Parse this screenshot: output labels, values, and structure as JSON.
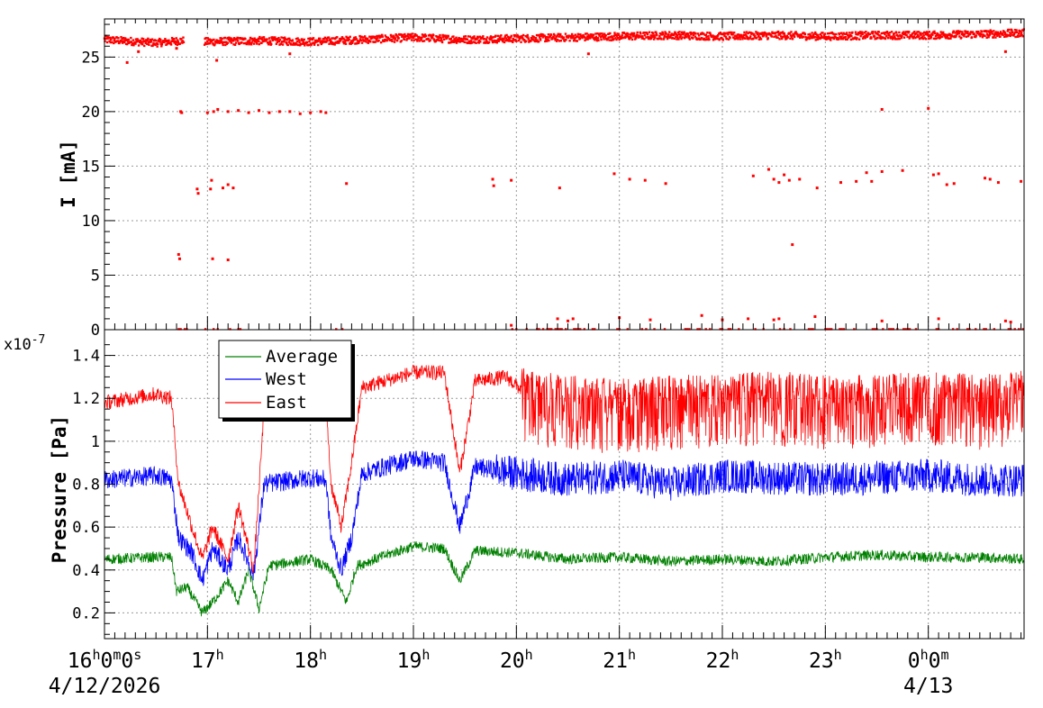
{
  "colors": {
    "current": "#ff0000",
    "average": "#008000",
    "west": "#0000ff",
    "east": "#ff0000",
    "grid": "#9a9a9a"
  },
  "x_axis": {
    "labels": [
      {
        "h": "16",
        "sup1": "h",
        "m": "0",
        "sup2": "m",
        "s": "0",
        "sup3": "s",
        "hour": 16
      },
      {
        "h": "17",
        "sup1": "h",
        "hour": 17
      },
      {
        "h": "18",
        "sup1": "h",
        "hour": 18
      },
      {
        "h": "19",
        "sup1": "h",
        "hour": 19
      },
      {
        "h": "20",
        "sup1": "h",
        "hour": 20
      },
      {
        "h": "21",
        "sup1": "h",
        "hour": 21
      },
      {
        "h": "22",
        "sup1": "h",
        "hour": 22
      },
      {
        "h": "23",
        "sup1": "h",
        "hour": 23
      },
      {
        "h": "0",
        "sup1": "h",
        "m": "0",
        "sup2": "m",
        "hour": 24
      }
    ],
    "dates": [
      {
        "text": "4/12/2026",
        "hour": 16
      },
      {
        "text": "4/13",
        "hour": 24
      }
    ]
  },
  "chart_data": [
    {
      "type": "scatter",
      "ylabel": "I [mA]",
      "x_range_hours": [
        16.0,
        24.93
      ],
      "ylim": [
        0,
        28.5
      ],
      "yticks": [
        0,
        5,
        10,
        15,
        20,
        25
      ],
      "grid": true,
      "series": [
        {
          "color": "#ff0000",
          "baseline_points": [
            [
              16.0,
              26.6
            ],
            [
              16.5,
              26.3
            ],
            [
              16.75,
              26.5
            ],
            [
              17.0,
              26.4
            ],
            [
              17.5,
              26.5
            ],
            [
              18.0,
              26.4
            ],
            [
              18.5,
              26.6
            ],
            [
              19.0,
              26.8
            ],
            [
              19.5,
              26.6
            ],
            [
              20.0,
              26.7
            ],
            [
              20.5,
              26.8
            ],
            [
              21.0,
              26.9
            ],
            [
              21.5,
              27.0
            ],
            [
              22.0,
              26.9
            ],
            [
              22.5,
              27.0
            ],
            [
              23.0,
              26.9
            ],
            [
              23.5,
              27.0
            ],
            [
              24.0,
              27.0
            ],
            [
              24.5,
              27.1
            ],
            [
              24.93,
              27.2
            ]
          ],
          "gap_hours": [
            [
              16.77,
              16.97
            ]
          ],
          "outliers": [
            [
              16.22,
              24.5
            ],
            [
              16.33,
              25.5
            ],
            [
              16.7,
              25.8
            ],
            [
              16.74,
              20.0
            ],
            [
              16.75,
              19.9
            ],
            [
              16.9,
              12.9
            ],
            [
              16.91,
              12.5
            ],
            [
              16.72,
              6.9
            ],
            [
              16.73,
              6.5
            ],
            [
              17.0,
              19.9
            ],
            [
              17.06,
              20.0
            ],
            [
              17.1,
              20.2
            ],
            [
              17.2,
              20.0
            ],
            [
              17.3,
              20.1
            ],
            [
              17.4,
              19.9
            ],
            [
              17.5,
              20.1
            ],
            [
              17.6,
              19.9
            ],
            [
              17.7,
              20.0
            ],
            [
              17.8,
              20.0
            ],
            [
              17.9,
              19.8
            ],
            [
              18.0,
              19.9
            ],
            [
              18.1,
              20.0
            ],
            [
              18.15,
              19.9
            ],
            [
              17.04,
              13.7
            ],
            [
              17.03,
              12.9
            ],
            [
              17.15,
              13.0
            ],
            [
              17.2,
              13.3
            ],
            [
              17.25,
              13.0
            ],
            [
              17.05,
              6.5
            ],
            [
              17.2,
              6.4
            ],
            [
              17.09,
              24.7
            ],
            [
              17.8,
              25.3
            ],
            [
              18.35,
              13.4
            ],
            [
              19.77,
              13.8
            ],
            [
              19.78,
              13.2
            ],
            [
              19.95,
              13.7
            ],
            [
              20.42,
              13.0
            ],
            [
              20.7,
              25.3
            ],
            [
              20.95,
              14.3
            ],
            [
              21.1,
              13.8
            ],
            [
              21.25,
              13.7
            ],
            [
              21.45,
              13.4
            ],
            [
              22.3,
              14.1
            ],
            [
              22.45,
              14.7
            ],
            [
              22.5,
              13.8
            ],
            [
              22.55,
              13.5
            ],
            [
              22.6,
              14.2
            ],
            [
              22.65,
              13.7
            ],
            [
              22.75,
              13.8
            ],
            [
              22.92,
              13.0
            ],
            [
              22.68,
              7.8
            ],
            [
              23.15,
              13.5
            ],
            [
              23.3,
              13.6
            ],
            [
              23.4,
              14.4
            ],
            [
              23.45,
              13.6
            ],
            [
              23.55,
              14.5
            ],
            [
              23.55,
              20.2
            ],
            [
              23.75,
              14.6
            ],
            [
              24.0,
              20.3
            ],
            [
              24.05,
              14.2
            ],
            [
              24.1,
              14.3
            ],
            [
              24.18,
              13.3
            ],
            [
              24.25,
              13.4
            ],
            [
              24.55,
              13.9
            ],
            [
              24.6,
              13.8
            ],
            [
              24.68,
              13.5
            ],
            [
              24.9,
              13.6
            ],
            [
              24.75,
              25.5
            ],
            [
              19.95,
              0.4
            ],
            [
              20.4,
              1.0
            ],
            [
              20.5,
              0.8
            ],
            [
              20.55,
              1.0
            ],
            [
              21.0,
              1.1
            ],
            [
              21.3,
              0.9
            ],
            [
              21.8,
              1.3
            ],
            [
              22.0,
              0.9
            ],
            [
              22.25,
              1.0
            ],
            [
              22.5,
              0.9
            ],
            [
              22.55,
              1.0
            ],
            [
              22.9,
              1.2
            ],
            [
              23.55,
              0.8
            ],
            [
              24.1,
              1.0
            ],
            [
              24.75,
              0.8
            ],
            [
              24.8,
              0.7
            ]
          ]
        }
      ]
    },
    {
      "type": "line",
      "ylabel": "Pressure [Pa]",
      "y_multiplier": "x10",
      "y_exponent": "-7",
      "x_range_hours": [
        16.0,
        24.93
      ],
      "ylim": [
        0.08,
        1.52
      ],
      "yticks": [
        0.2,
        0.4,
        0.6,
        0.8,
        1.0,
        1.2,
        1.4
      ],
      "ytick_labels": [
        "0.2",
        "0.4",
        "0.6",
        "0.8",
        "1",
        "1.2",
        "1.4"
      ],
      "grid": true,
      "legend_position": "top-left",
      "series": [
        {
          "name": "Average",
          "color": "#008000",
          "points": [
            [
              16.0,
              0.45
            ],
            [
              16.5,
              0.46
            ],
            [
              16.65,
              0.46
            ],
            [
              16.7,
              0.3
            ],
            [
              16.8,
              0.32
            ],
            [
              16.95,
              0.2
            ],
            [
              17.05,
              0.25
            ],
            [
              17.2,
              0.35
            ],
            [
              17.3,
              0.25
            ],
            [
              17.4,
              0.4
            ],
            [
              17.5,
              0.22
            ],
            [
              17.6,
              0.42
            ],
            [
              18.0,
              0.45
            ],
            [
              18.2,
              0.4
            ],
            [
              18.3,
              0.3
            ],
            [
              18.35,
              0.25
            ],
            [
              18.45,
              0.42
            ],
            [
              18.8,
              0.48
            ],
            [
              19.0,
              0.51
            ],
            [
              19.3,
              0.5
            ],
            [
              19.45,
              0.35
            ],
            [
              19.6,
              0.49
            ],
            [
              20.0,
              0.48
            ],
            [
              20.5,
              0.45
            ],
            [
              21.0,
              0.46
            ],
            [
              21.5,
              0.44
            ],
            [
              22.0,
              0.45
            ],
            [
              22.5,
              0.44
            ],
            [
              23.0,
              0.46
            ],
            [
              23.5,
              0.47
            ],
            [
              24.0,
              0.46
            ],
            [
              24.5,
              0.46
            ],
            [
              24.93,
              0.45
            ]
          ]
        },
        {
          "name": "West",
          "color": "#0000ff",
          "points": [
            [
              16.0,
              0.82
            ],
            [
              16.5,
              0.84
            ],
            [
              16.65,
              0.82
            ],
            [
              16.72,
              0.55
            ],
            [
              16.85,
              0.48
            ],
            [
              16.95,
              0.35
            ],
            [
              17.05,
              0.5
            ],
            [
              17.2,
              0.4
            ],
            [
              17.3,
              0.55
            ],
            [
              17.45,
              0.38
            ],
            [
              17.55,
              0.8
            ],
            [
              18.0,
              0.83
            ],
            [
              18.15,
              0.82
            ],
            [
              18.2,
              0.55
            ],
            [
              18.3,
              0.4
            ],
            [
              18.4,
              0.55
            ],
            [
              18.5,
              0.85
            ],
            [
              19.0,
              0.92
            ],
            [
              19.3,
              0.9
            ],
            [
              19.45,
              0.6
            ],
            [
              19.6,
              0.88
            ],
            [
              20.0,
              0.85
            ],
            [
              20.5,
              0.82
            ],
            [
              21.0,
              0.84
            ],
            [
              21.5,
              0.8
            ],
            [
              22.0,
              0.84
            ],
            [
              22.5,
              0.83
            ],
            [
              23.0,
              0.82
            ],
            [
              23.5,
              0.83
            ],
            [
              24.0,
              0.84
            ],
            [
              24.5,
              0.82
            ],
            [
              24.93,
              0.82
            ]
          ]
        },
        {
          "name": "East",
          "color": "#ff0000",
          "points": [
            [
              16.0,
              1.18
            ],
            [
              16.5,
              1.22
            ],
            [
              16.65,
              1.2
            ],
            [
              16.72,
              0.8
            ],
            [
              16.85,
              0.6
            ],
            [
              16.95,
              0.45
            ],
            [
              17.05,
              0.6
            ],
            [
              17.2,
              0.45
            ],
            [
              17.3,
              0.7
            ],
            [
              17.45,
              0.4
            ],
            [
              17.55,
              1.15
            ],
            [
              18.0,
              1.2
            ],
            [
              18.15,
              1.2
            ],
            [
              18.2,
              0.8
            ],
            [
              18.3,
              0.6
            ],
            [
              18.4,
              0.9
            ],
            [
              18.5,
              1.25
            ],
            [
              19.0,
              1.32
            ],
            [
              19.3,
              1.32
            ],
            [
              19.45,
              0.85
            ],
            [
              19.6,
              1.28
            ],
            [
              19.9,
              1.3
            ],
            [
              20.1,
              1.22
            ],
            [
              20.5,
              1.2
            ],
            [
              21.0,
              1.18
            ],
            [
              21.5,
              1.2
            ],
            [
              22.0,
              1.2
            ],
            [
              22.5,
              1.22
            ],
            [
              23.0,
              1.2
            ],
            [
              23.5,
              1.2
            ],
            [
              24.0,
              1.22
            ],
            [
              24.5,
              1.2
            ],
            [
              24.93,
              1.22
            ]
          ]
        }
      ]
    }
  ]
}
